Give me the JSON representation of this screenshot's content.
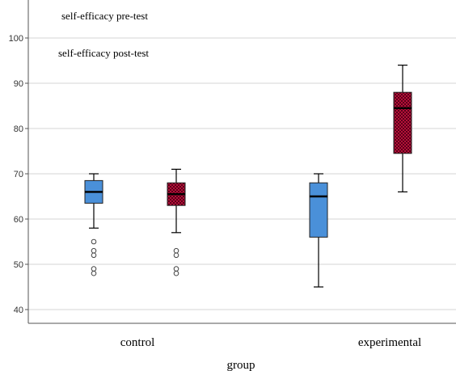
{
  "chart_data": {
    "type": "boxplot",
    "xlabel": "group",
    "ylabel": "",
    "ylim": [
      37,
      100
    ],
    "yticks": [
      40,
      50,
      60,
      70,
      80,
      90,
      100
    ],
    "grid": "horizontal",
    "legend_position": "top-left",
    "categories": [
      "control",
      "experimental"
    ],
    "series": [
      {
        "name": "self-efficacy pre-test",
        "color": "#4a90d9",
        "pattern": "solid",
        "boxes": [
          {
            "category": "control",
            "min": 58,
            "q1": 63.5,
            "median": 66,
            "q3": 68.5,
            "max": 70,
            "outliers": [
              55,
              53,
              52,
              49,
              48
            ]
          },
          {
            "category": "experimental",
            "min": 45,
            "q1": 56,
            "median": 65,
            "q3": 68,
            "max": 70,
            "outliers": []
          }
        ]
      },
      {
        "name": "self-efficacy post-test",
        "color": "#b5103a",
        "pattern": "checkered",
        "boxes": [
          {
            "category": "control",
            "min": 57,
            "q1": 63,
            "median": 65.5,
            "q3": 68,
            "max": 71,
            "outliers": [
              53,
              52,
              49,
              48
            ]
          },
          {
            "category": "experimental",
            "min": 66,
            "q1": 74.5,
            "median": 84.5,
            "q3": 88,
            "max": 94,
            "outliers": []
          }
        ]
      }
    ]
  }
}
